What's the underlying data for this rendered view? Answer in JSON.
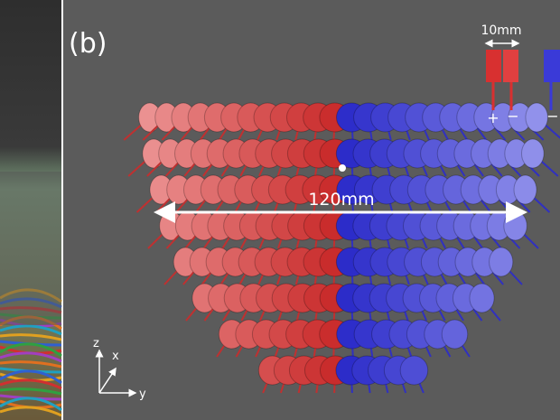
{
  "panel_label": "(b)",
  "legend": {
    "size_label": "10mm",
    "plus": "+",
    "minus": "−"
  },
  "dimension_label": "120mm",
  "axes": {
    "z": "z",
    "x": "x",
    "y": "y"
  }
}
